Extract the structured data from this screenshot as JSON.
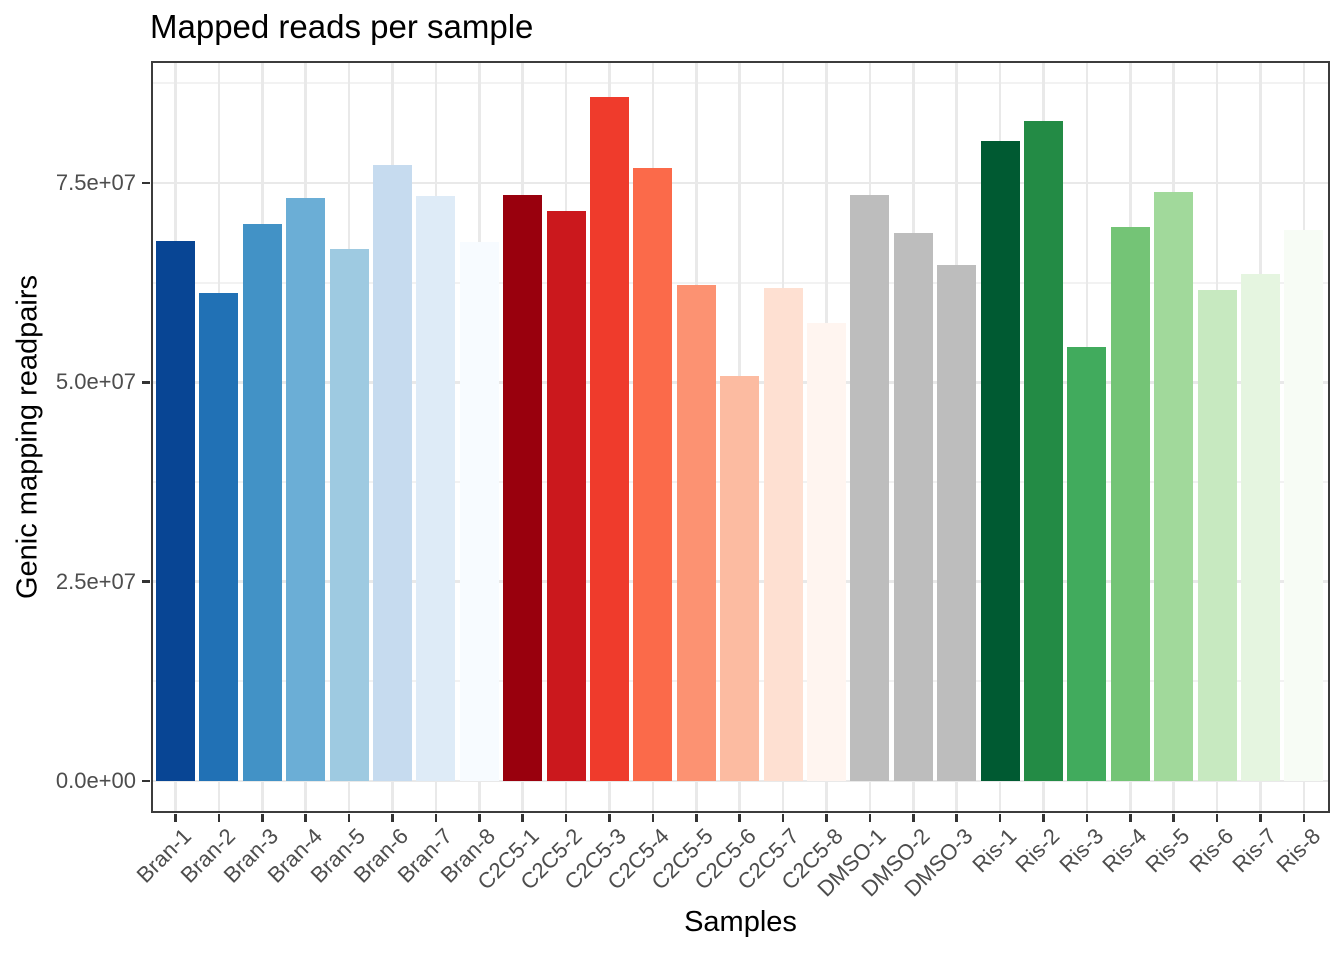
{
  "chart_data": {
    "type": "bar",
    "title": "Mapped reads per sample",
    "xlabel": "Samples",
    "ylabel": "Genic mapping readpairs",
    "categories": [
      "Bran-1",
      "Bran-2",
      "Bran-3",
      "Bran-4",
      "Bran-5",
      "Bran-6",
      "Bran-7",
      "Bran-8",
      "C2C5-1",
      "C2C5-2",
      "C2C5-3",
      "C2C5-4",
      "C2C5-5",
      "C2C5-6",
      "C2C5-7",
      "C2C5-8",
      "DMSO-1",
      "DMSO-2",
      "DMSO-3",
      "Ris-1",
      "Ris-2",
      "Ris-3",
      "Ris-4",
      "Ris-5",
      "Ris-6",
      "Ris-7",
      "Ris-8"
    ],
    "values": [
      67700000,
      61200000,
      69900000,
      73100000,
      66700000,
      77300000,
      73400000,
      67600000,
      73500000,
      71500000,
      85800000,
      76900000,
      62200000,
      50800000,
      61800000,
      57400000,
      73500000,
      68700000,
      64700000,
      80300000,
      82800000,
      54400000,
      69500000,
      73900000,
      61600000,
      63600000,
      69100000
    ],
    "bar_colors": [
      "#084594",
      "#2171B5",
      "#4292C6",
      "#6BAED6",
      "#9ECAE1",
      "#C6DBEF",
      "#DEEBF7",
      "#F7FBFF",
      "#99000D",
      "#CB181D",
      "#EF3B2C",
      "#FB6A4A",
      "#FC9272",
      "#FCBBA1",
      "#FEE0D2",
      "#FFF5F0",
      "#BDBDBD",
      "#BDBDBD",
      "#BDBDBD",
      "#005A32",
      "#238B45",
      "#41AB5D",
      "#74C476",
      "#A1D99B",
      "#C7E9C0",
      "#E5F5E0",
      "#F7FCF5"
    ],
    "y_ticks": [
      {
        "label": "0.0e+00",
        "value": 0
      },
      {
        "label": "2.5e+07",
        "value": 25000000
      },
      {
        "label": "5.0e+07",
        "value": 50000000
      },
      {
        "label": "7.5e+07",
        "value": 75000000
      }
    ],
    "y_minor_values": [
      12500000,
      37500000,
      62500000,
      87500000
    ],
    "ylim": [
      0,
      90300000
    ],
    "grid": "horizontal major+minor, vertical major at each category",
    "legend": "none"
  },
  "style": {
    "background": "#FFFFFF",
    "panel_border": "#3C3C3C",
    "grid_major": "#E9E9E9",
    "grid_minor": "#F2F2F2",
    "axis_tick": "#333333",
    "tick_label_color": "#4D4D4D",
    "title_color": "#000000"
  }
}
